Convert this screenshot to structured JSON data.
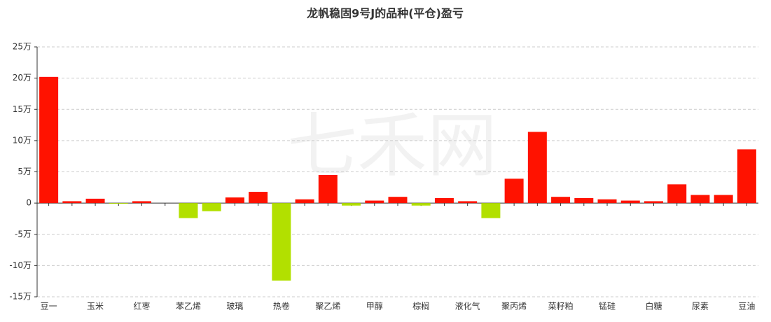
{
  "chart_data": {
    "type": "bar",
    "title": "龙帆稳固9号J的品种(平仓)盈亏",
    "watermark": "七禾网",
    "categories": [
      "豆一",
      null,
      "玉米",
      null,
      "红枣",
      null,
      "苯乙烯",
      null,
      "玻璃",
      null,
      "热卷",
      null,
      "聚乙烯",
      null,
      "甲醇",
      null,
      "棕榈",
      null,
      "液化气",
      null,
      "聚丙烯",
      null,
      "菜籽粕",
      null,
      "锰硅",
      null,
      "白糖",
      null,
      "尿素",
      null,
      "豆油"
    ],
    "values": [
      20.2,
      0.3,
      0.7,
      -0.1,
      0.3,
      0,
      -2.4,
      -1.3,
      0.9,
      1.8,
      -12.4,
      0.6,
      4.5,
      -0.4,
      0.4,
      1.0,
      -0.4,
      0.8,
      0.3,
      -2.4,
      3.9,
      11.4,
      1.0,
      0.8,
      0.6,
      0.4,
      0.3,
      3.0,
      1.3,
      1.3,
      8.6
    ],
    "positive_color": "#ff1200",
    "negative_color": "#b2e000",
    "ylim": [
      -15,
      25
    ],
    "yticks": [
      {
        "value": -15,
        "label": "-15万"
      },
      {
        "value": -10,
        "label": "-10万"
      },
      {
        "value": -5,
        "label": "-5万"
      },
      {
        "value": 0,
        "label": "0"
      },
      {
        "value": 5,
        "label": "5万"
      },
      {
        "value": 10,
        "label": "10万"
      },
      {
        "value": 15,
        "label": "15万"
      },
      {
        "value": 20,
        "label": "20万"
      },
      {
        "value": 25,
        "label": "25万"
      }
    ],
    "grid": true
  }
}
